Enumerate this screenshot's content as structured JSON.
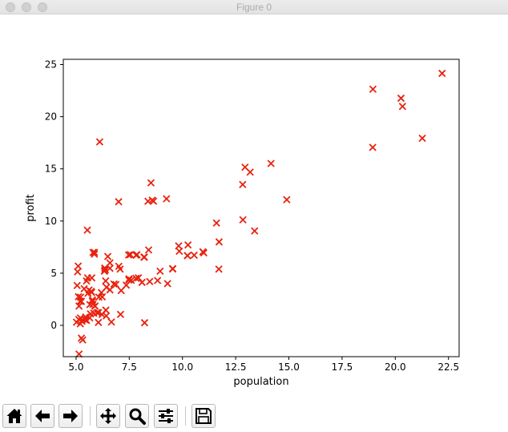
{
  "window": {
    "title": "Figure 0"
  },
  "toolbar": {
    "buttons": [
      {
        "name": "home-button",
        "icon": "home-icon"
      },
      {
        "name": "back-button",
        "icon": "arrow-left-icon"
      },
      {
        "name": "forward-button",
        "icon": "arrow-right-icon"
      },
      {
        "name": "pan-button",
        "icon": "move-arrows-icon"
      },
      {
        "name": "zoom-button",
        "icon": "magnifier-icon"
      },
      {
        "name": "configure-subplots-button",
        "icon": "sliders-icon"
      },
      {
        "name": "save-button",
        "icon": "floppy-disk-icon"
      }
    ]
  },
  "colors": {
    "marker": "#e8220e",
    "axis": "#000000"
  },
  "chart_data": {
    "type": "scatter",
    "marker": "x",
    "xlabel": "population",
    "ylabel": "profit",
    "xlim": [
      4.4,
      23.0
    ],
    "ylim": [
      -3.0,
      25.5
    ],
    "xticks": [
      5.0,
      7.5,
      10.0,
      12.5,
      15.0,
      17.5,
      20.0,
      22.5
    ],
    "xtick_labels": [
      "5.0",
      "7.5",
      "10.0",
      "12.5",
      "15.0",
      "17.5",
      "20.0",
      "22.5"
    ],
    "yticks": [
      0,
      5,
      10,
      15,
      20,
      25
    ],
    "ytick_labels": [
      "0",
      "5",
      "10",
      "15",
      "20",
      "25"
    ],
    "grid": false,
    "points": [
      [
        6.11,
        17.59
      ],
      [
        5.53,
        9.13
      ],
      [
        8.52,
        13.66
      ],
      [
        7.0,
        11.85
      ],
      [
        5.86,
        6.82
      ],
      [
        8.38,
        11.89
      ],
      [
        7.48,
        4.35
      ],
      [
        8.58,
        12.0
      ],
      [
        6.49,
        6.6
      ],
      [
        5.05,
        3.82
      ],
      [
        5.71,
        3.25
      ],
      [
        14.16,
        15.51
      ],
      [
        5.73,
        3.16
      ],
      [
        8.41,
        7.23
      ],
      [
        5.64,
        0.72
      ],
      [
        5.38,
        3.51
      ],
      [
        6.37,
        5.3
      ],
      [
        5.13,
        0.56
      ],
      [
        6.43,
        3.65
      ],
      [
        7.07,
        5.39
      ],
      [
        6.19,
        3.14
      ],
      [
        20.27,
        21.77
      ],
      [
        5.49,
        4.26
      ],
      [
        6.33,
        5.19
      ],
      [
        5.56,
        3.08
      ],
      [
        18.95,
        22.64
      ],
      [
        12.83,
        13.5
      ],
      [
        10.96,
        7.05
      ],
      [
        13.18,
        14.69
      ],
      [
        22.2,
        24.15
      ],
      [
        5.25,
        -1.22
      ],
      [
        6.59,
        5.99
      ],
      [
        9.25,
        12.13
      ],
      [
        5.89,
        1.85
      ],
      [
        8.21,
        6.54
      ],
      [
        7.93,
        4.56
      ],
      [
        8.1,
        4.12
      ],
      [
        5.61,
        3.39
      ],
      [
        12.84,
        10.12
      ],
      [
        6.35,
        5.5
      ],
      [
        5.41,
        0.56
      ],
      [
        6.87,
        3.91
      ],
      [
        11.71,
        5.39
      ],
      [
        5.77,
        2.44
      ],
      [
        7.82,
        6.73
      ],
      [
        7.09,
        1.05
      ],
      [
        5.07,
        5.13
      ],
      [
        5.89,
        1.84
      ],
      [
        5.74,
        4.55
      ],
      [
        7.49,
        4.46
      ],
      [
        5.2,
        0.15
      ],
      [
        10.26,
        7.71
      ],
      [
        7.12,
        3.34
      ],
      [
        6.39,
        4.26
      ],
      [
        5.25,
        2.3
      ],
      [
        5.11,
        2.74
      ],
      [
        5.14,
        -2.75
      ],
      [
        5.14,
        1.85
      ],
      [
        13.39,
        9.05
      ],
      [
        8.46,
        4.2
      ],
      [
        5.65,
        1.99
      ],
      [
        7.59,
        4.32
      ],
      [
        6.05,
        0.28
      ],
      [
        6.23,
        2.73
      ],
      [
        5.99,
        1.22
      ],
      [
        5.31,
        -1.4
      ],
      [
        5.21,
        0.71
      ],
      [
        21.27,
        17.93
      ],
      [
        6.22,
        1.04
      ],
      [
        5.45,
        0.8
      ],
      [
        5.21,
        2.7
      ],
      [
        7.47,
        6.75
      ],
      [
        8.19,
        6.54
      ],
      [
        6.59,
        5.47
      ],
      [
        7.01,
        5.66
      ],
      [
        20.34,
        20.99
      ],
      [
        10.24,
        6.68
      ],
      [
        5.1,
        5.68
      ],
      [
        12.94,
        15.16
      ],
      [
        5.54,
        4.56
      ],
      [
        18.94,
        17.06
      ],
      [
        9.82,
        7.62
      ],
      [
        5.19,
        2.31
      ],
      [
        6.36,
        5.36
      ],
      [
        5.8,
        6.99
      ],
      [
        11.6,
        9.81
      ],
      [
        10.23,
        6.69
      ],
      [
        5.77,
        2.29
      ],
      [
        8.22,
        0.25
      ],
      [
        7.36,
        3.86
      ],
      [
        5.49,
        0.47
      ],
      [
        5.47,
        0.53
      ],
      [
        5.68,
        1.1
      ],
      [
        9.54,
        5.44
      ],
      [
        5.83,
        1.17
      ],
      [
        8.64,
        11.9
      ],
      [
        5.86,
        7.0
      ],
      [
        7.86,
        6.77
      ],
      [
        5.41,
        0.54
      ],
      [
        8.95,
        5.19
      ],
      [
        6.42,
        0.91
      ],
      [
        11.72,
        8.0
      ],
      [
        9.54,
        5.4
      ],
      [
        6.07,
        2.7
      ],
      [
        9.3,
        4.0
      ],
      [
        5.28,
        0.4
      ],
      [
        9.85,
        7.1
      ],
      [
        14.9,
        12.05
      ],
      [
        11.0,
        6.95
      ],
      [
        6.66,
        0.32
      ],
      [
        6.4,
        1.46
      ],
      [
        7.55,
        6.78
      ],
      [
        8.83,
        4.3
      ],
      [
        6.59,
        3.4
      ],
      [
        5.79,
        2.01
      ],
      [
        10.55,
        6.73
      ],
      [
        6.05,
        1.22
      ],
      [
        7.82,
        4.51
      ],
      [
        6.78,
        3.96
      ],
      [
        5.02,
        0.3
      ]
    ]
  }
}
